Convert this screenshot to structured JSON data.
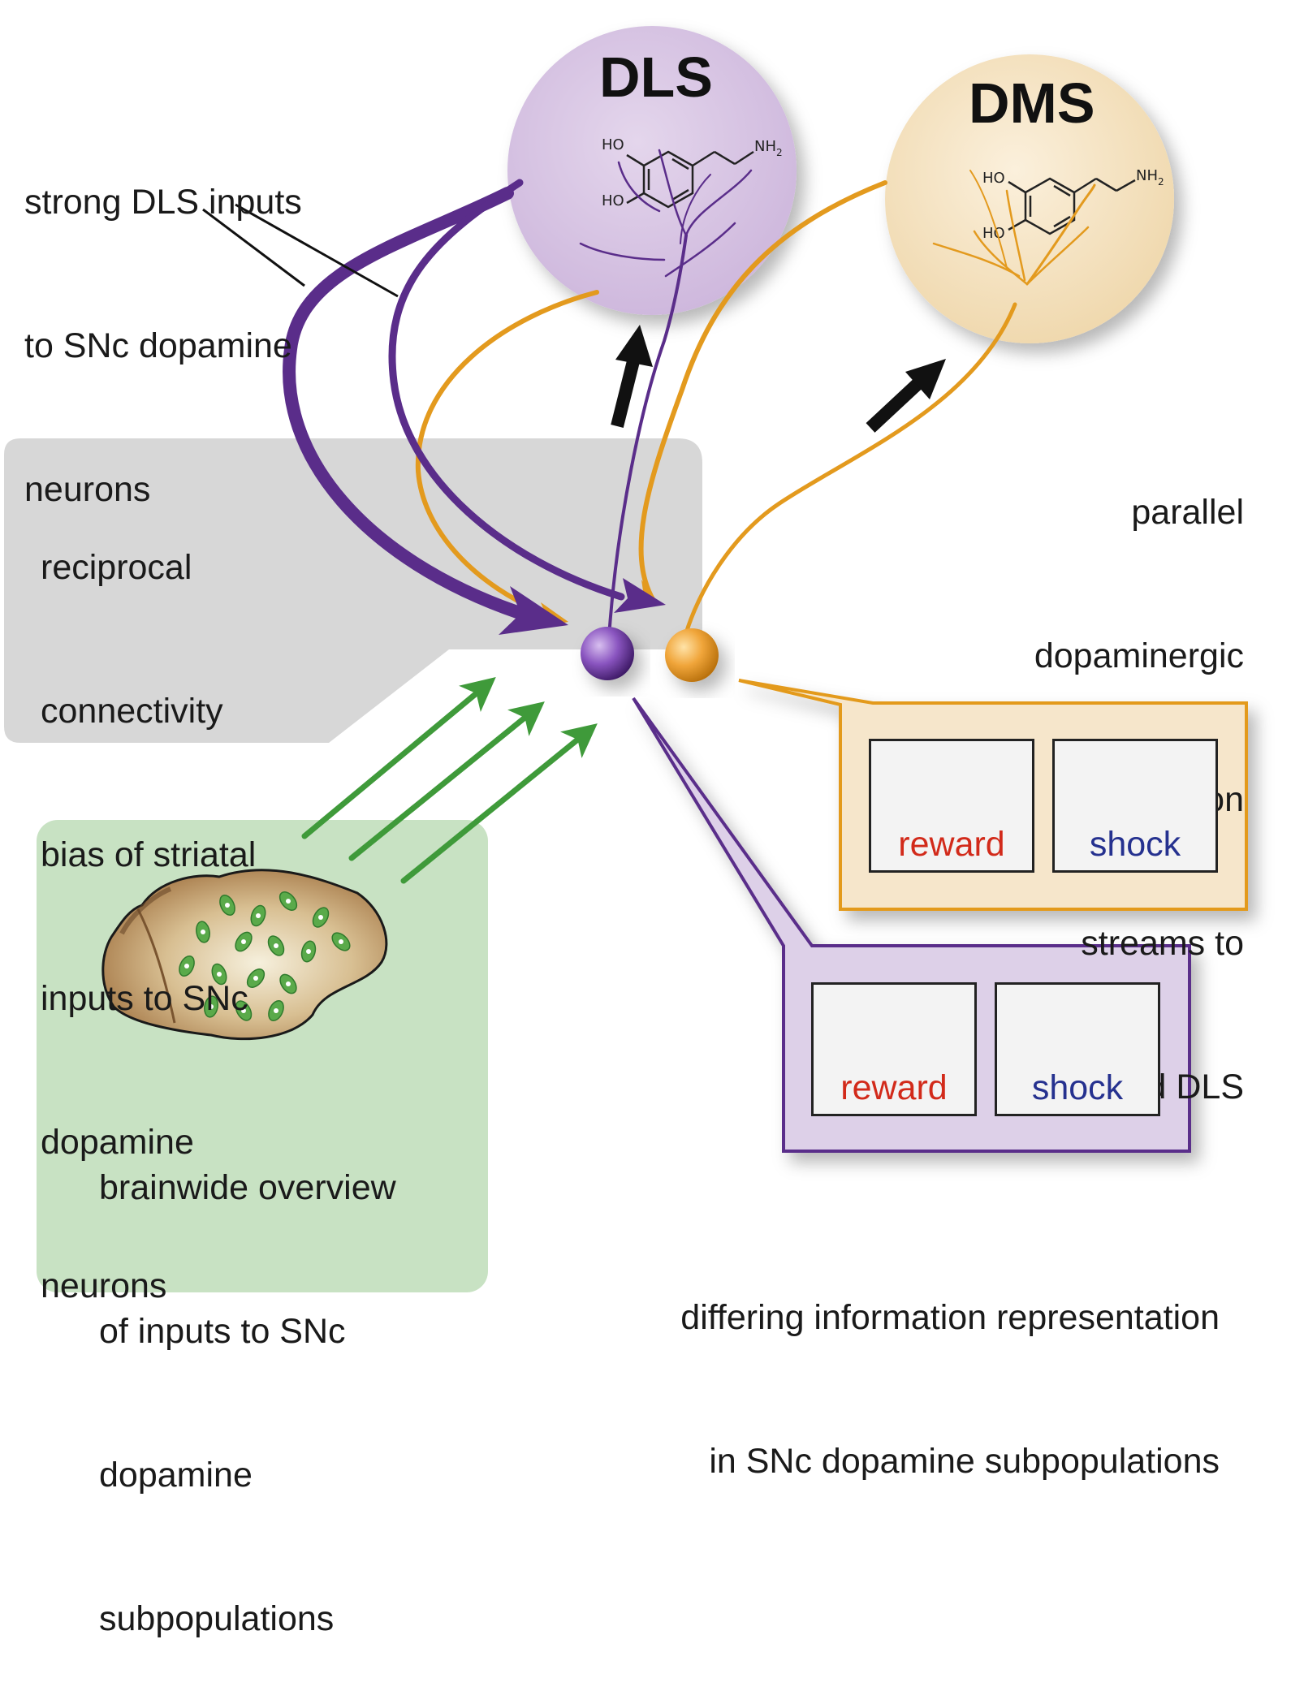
{
  "regions": {
    "dls": "DLS",
    "dms": "DMS"
  },
  "chemistry": {
    "dls_ho_top": "HO",
    "dls_ho_bottom": "HO",
    "dls_nh2": "NH",
    "dls_nh2_sub": "2",
    "dms_ho_top": "HO",
    "dms_ho_bottom": "HO",
    "dms_nh2": "NH",
    "dms_nh2_sub": "2"
  },
  "annotations": {
    "strong_dls": [
      "strong DLS inputs",
      "to SNc dopamine",
      "neurons"
    ],
    "reciprocal": [
      "reciprocal",
      "connectivity",
      "bias of striatal",
      "inputs to SNc",
      "dopamine",
      "neurons"
    ],
    "parallel": [
      "parallel",
      "dopaminergic",
      "information",
      "streams to",
      "DMS and DLS"
    ],
    "brainwide": [
      "brainwide overview",
      "of inputs to SNc",
      "dopamine",
      "subpopulations"
    ],
    "differing": [
      "differing information representation",
      "in SNc dopamine subpopulations"
    ]
  },
  "response_panels": {
    "orange": [
      {
        "label": "reward",
        "shape": "peak-up",
        "color": "#d22a1a"
      },
      {
        "label": "shock",
        "shape": "dip-down",
        "color": "#25318f"
      }
    ],
    "purple": [
      {
        "label": "reward",
        "shape": "peak-up",
        "color": "#d22a1a"
      },
      {
        "label": "shock",
        "shape": "peak-up",
        "color": "#25318f"
      }
    ]
  },
  "colors": {
    "dls_fill": "#d9c8e3",
    "dms_fill": "#f4e3c6",
    "purple": "#5a2d8a",
    "orange": "#e39a1e",
    "green": "#3f9a3a",
    "gray_panel": "#d7d7d7",
    "green_panel": "#c8e2c3",
    "orange_callout": "#f6e6cb",
    "purple_callout": "#ddd0e8"
  }
}
